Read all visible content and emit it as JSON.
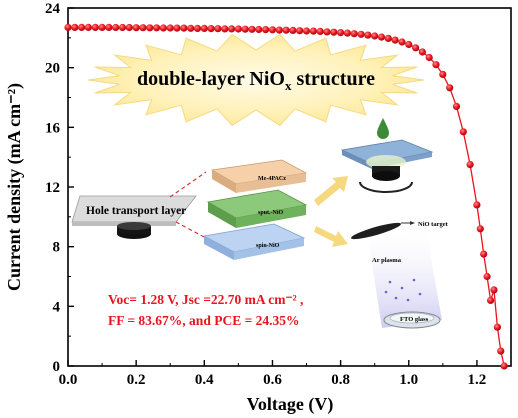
{
  "chart_data": {
    "type": "scatter",
    "xlabel": "Voltage (V)",
    "ylabel": "Current density (mA cm⁻²)",
    "xlim": [
      0.0,
      1.3
    ],
    "ylim": [
      0,
      24
    ],
    "x_ticks": [
      "0.0",
      "0.2",
      "0.4",
      "0.6",
      "0.8",
      "1.0",
      "1.2"
    ],
    "y_ticks": [
      "0",
      "4",
      "8",
      "12",
      "16",
      "20",
      "24"
    ],
    "grid": false,
    "series": [
      {
        "color": "#e8141e",
        "x": [
          0.0,
          0.02,
          0.04,
          0.06,
          0.08,
          0.1,
          0.12,
          0.14,
          0.16,
          0.18,
          0.2,
          0.22,
          0.24,
          0.26,
          0.28,
          0.3,
          0.32,
          0.34,
          0.36,
          0.38,
          0.4,
          0.42,
          0.44,
          0.46,
          0.48,
          0.5,
          0.52,
          0.54,
          0.56,
          0.58,
          0.6,
          0.62,
          0.64,
          0.66,
          0.68,
          0.7,
          0.72,
          0.74,
          0.76,
          0.78,
          0.8,
          0.82,
          0.84,
          0.86,
          0.88,
          0.9,
          0.92,
          0.94,
          0.96,
          0.98,
          1.0,
          1.02,
          1.04,
          1.06,
          1.08,
          1.1,
          1.12,
          1.14,
          1.16,
          1.18,
          1.2,
          1.21,
          1.22,
          1.23,
          1.24,
          1.25,
          1.26,
          1.27,
          1.28
        ],
        "y": [
          22.7,
          22.7,
          22.7,
          22.7,
          22.7,
          22.7,
          22.7,
          22.69,
          22.69,
          22.69,
          22.68,
          22.68,
          22.67,
          22.67,
          22.66,
          22.66,
          22.65,
          22.65,
          22.64,
          22.63,
          22.63,
          22.62,
          22.61,
          22.6,
          22.6,
          22.59,
          22.58,
          22.57,
          22.56,
          22.55,
          22.54,
          22.52,
          22.51,
          22.5,
          22.48,
          22.46,
          22.45,
          22.43,
          22.4,
          22.38,
          22.35,
          22.32,
          22.28,
          22.24,
          22.18,
          22.12,
          22.05,
          21.96,
          21.85,
          21.72,
          21.55,
          21.33,
          21.05,
          20.68,
          20.2,
          19.55,
          18.65,
          17.4,
          15.7,
          13.5,
          10.8,
          9.2,
          7.5,
          6.0,
          4.4,
          5.1,
          2.6,
          1.0,
          0.0
        ]
      }
    ],
    "annotations": {
      "banner": "double-layer NiO",
      "banner_sub": "x",
      "banner_end": " structure",
      "results_line1": "Voc= 1.28 V, Jsc =22.70 mA cm⁻² ,",
      "results_line2": "FF = 83.67%, and PCE = 24.35%",
      "htl_label": "Hole transport layer",
      "layer_top": "Me-4PACz",
      "layer_mid": "sput.-NiO",
      "layer_bottom": "spin-NiO",
      "nio_target": "NiO target",
      "ar_plasma": "Ar plasma",
      "fto_glass": "FTO glass"
    }
  }
}
